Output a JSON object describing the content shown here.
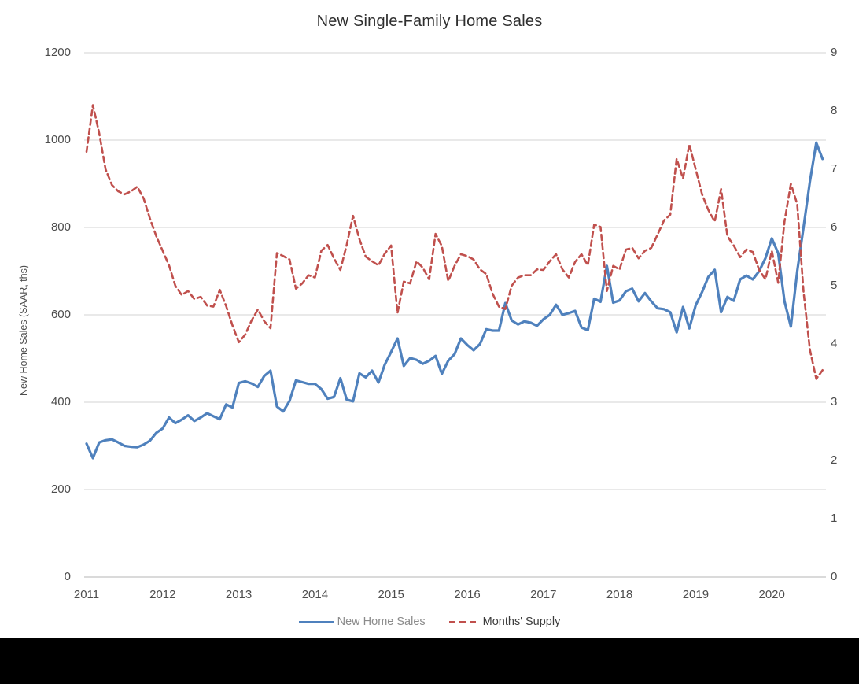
{
  "chart_data": {
    "type": "line",
    "title": "New Single-Family Home Sales",
    "ylabel_left": "New Home Sales (SAAR, ths)",
    "ylabel_right": "",
    "frequency": "monthly",
    "start_period": "2011-01",
    "end_period": "2020-09",
    "grid": "horizontal",
    "legend_position": "bottom",
    "x_tick_labels": [
      "2011",
      "2012",
      "2013",
      "2014",
      "2015",
      "2016",
      "2017",
      "2018",
      "2019",
      "2020"
    ],
    "left_axis": {
      "min": 0,
      "max": 1200,
      "tick_step": 200,
      "tick_labels": [
        "0",
        "200",
        "400",
        "600",
        "800",
        "1000",
        "1200"
      ]
    },
    "right_axis": {
      "min": 0,
      "max": 9,
      "tick_step": 1,
      "tick_labels": [
        "0",
        "1",
        "2",
        "3",
        "4",
        "5",
        "6",
        "7",
        "8",
        "9"
      ]
    },
    "colors": {
      "sales_line": "#4f81bd",
      "supply_line": "#c0504d",
      "gridline": "#dcdcdc",
      "baseline": "#c4c4c4",
      "tick_text": "#4d4d4d",
      "title_text": "#2f2f2f"
    },
    "series": [
      {
        "name": "New Home Sales",
        "axis": "left",
        "style": "solid",
        "color": "#4f81bd",
        "values": [
          305,
          272,
          308,
          313,
          315,
          308,
          300,
          298,
          297,
          303,
          312,
          330,
          340,
          365,
          352,
          360,
          370,
          357,
          365,
          375,
          368,
          361,
          395,
          388,
          444,
          448,
          443,
          435,
          460,
          472,
          390,
          379,
          403,
          450,
          446,
          442,
          442,
          430,
          408,
          412,
          455,
          406,
          402,
          466,
          457,
          472,
          445,
          486,
          515,
          546,
          483,
          501,
          497,
          488,
          495,
          506,
          465,
          495,
          510,
          546,
          531,
          519,
          533,
          567,
          564,
          564,
          627,
          587,
          578,
          585,
          582,
          575,
          590,
          600,
          623,
          600,
          604,
          609,
          571,
          565,
          637,
          630,
          712,
          628,
          633,
          654,
          660,
          631,
          650,
          631,
          615,
          613,
          606,
          560,
          618,
          569,
          622,
          652,
          687,
          703,
          606,
          641,
          632,
          681,
          690,
          681,
          700,
          730,
          775,
          741,
          631,
          573,
          700,
          800,
          905,
          994,
          957
        ]
      },
      {
        "name": "Months' Supply",
        "axis": "right",
        "style": "dashed",
        "color": "#c0504d",
        "values": [
          7.3,
          8.1,
          7.62,
          7.0,
          6.73,
          6.62,
          6.57,
          6.62,
          6.7,
          6.5,
          6.15,
          5.85,
          5.6,
          5.35,
          5.0,
          4.84,
          4.91,
          4.77,
          4.81,
          4.66,
          4.64,
          4.93,
          4.65,
          4.32,
          4.03,
          4.16,
          4.4,
          4.59,
          4.39,
          4.27,
          5.56,
          5.51,
          5.45,
          4.95,
          5.04,
          5.18,
          5.14,
          5.6,
          5.7,
          5.47,
          5.27,
          5.7,
          6.2,
          5.8,
          5.5,
          5.42,
          5.35,
          5.55,
          5.69,
          4.53,
          5.07,
          5.04,
          5.42,
          5.31,
          5.11,
          5.89,
          5.68,
          5.08,
          5.34,
          5.54,
          5.51,
          5.45,
          5.28,
          5.2,
          4.86,
          4.64,
          4.6,
          5.0,
          5.14,
          5.18,
          5.18,
          5.28,
          5.27,
          5.42,
          5.54,
          5.28,
          5.14,
          5.41,
          5.54,
          5.35,
          6.05,
          6.01,
          4.91,
          5.34,
          5.28,
          5.62,
          5.65,
          5.47,
          5.6,
          5.65,
          5.88,
          6.12,
          6.22,
          7.18,
          6.84,
          7.43,
          7.0,
          6.57,
          6.3,
          6.1,
          6.66,
          5.85,
          5.69,
          5.49,
          5.62,
          5.58,
          5.27,
          5.11,
          5.6,
          5.05,
          6.1,
          6.75,
          6.4,
          4.9,
          3.9,
          3.4,
          3.55
        ]
      }
    ]
  }
}
